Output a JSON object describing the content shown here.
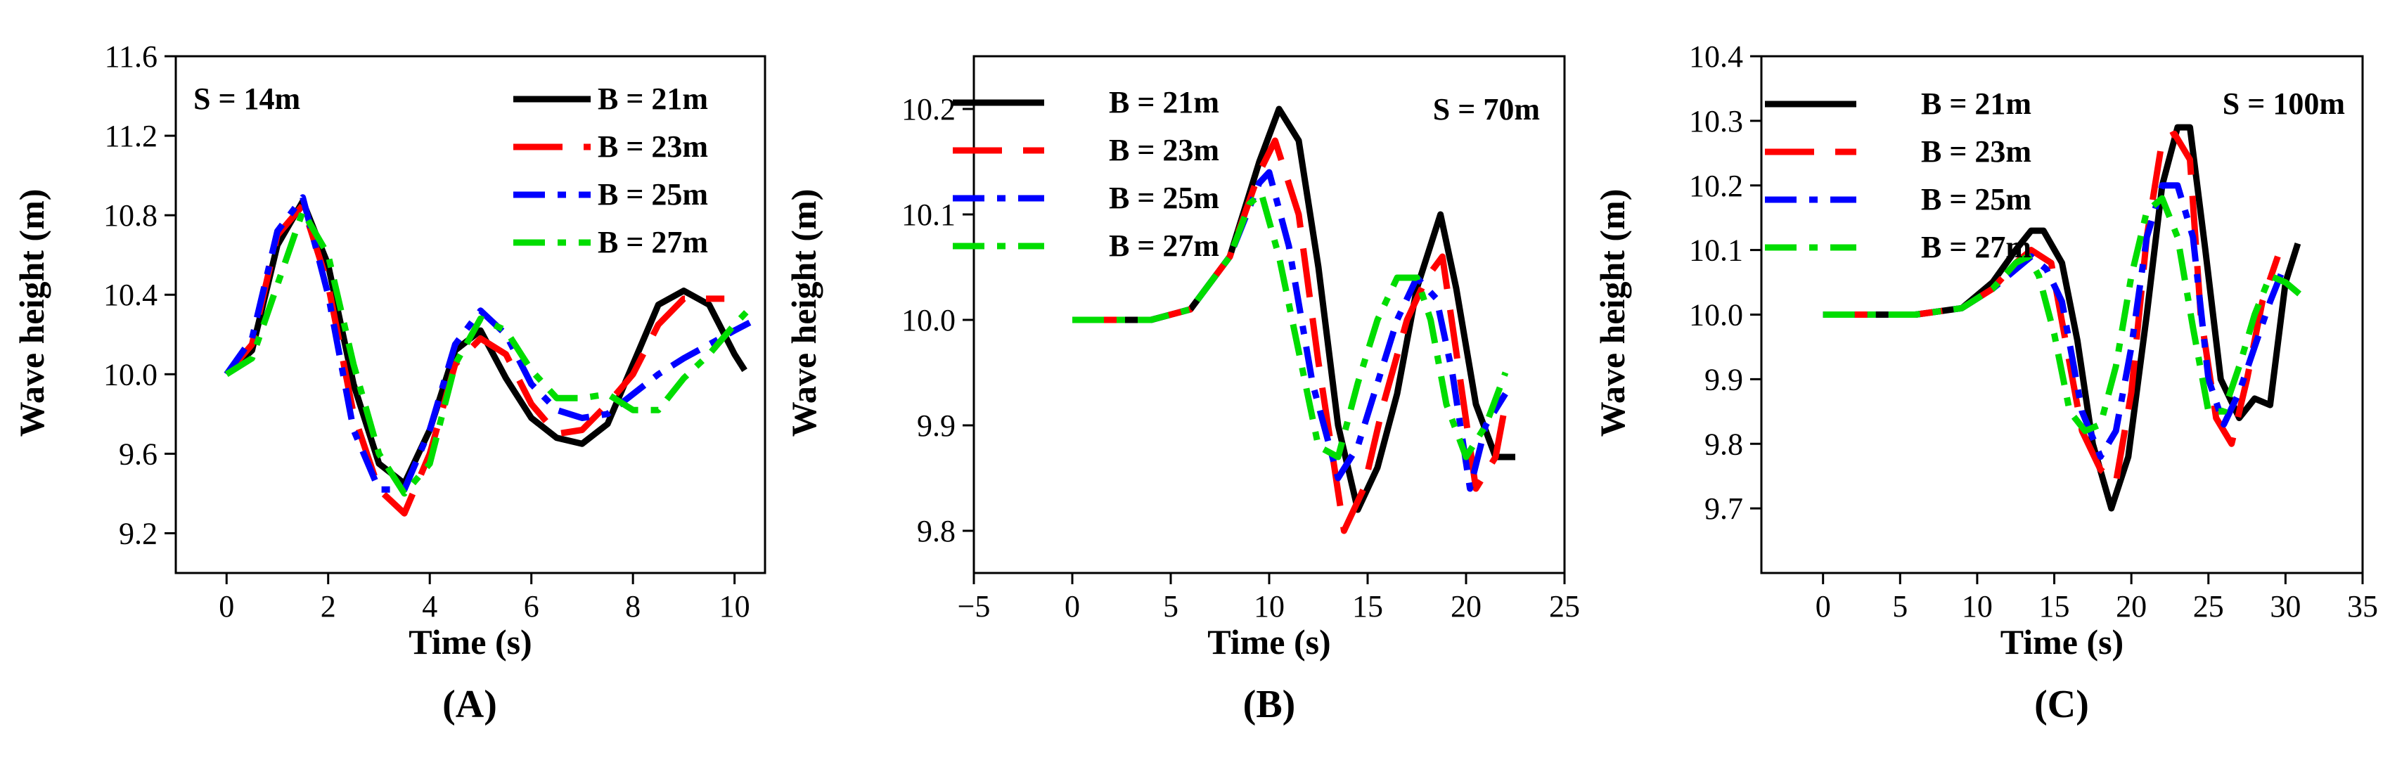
{
  "figure": {
    "legend_labels": [
      "B = 21m",
      "B = 23m",
      "B = 25m",
      "B = 27m"
    ]
  },
  "chart_data": [
    {
      "type": "line",
      "panel_label": "(A)",
      "title": "",
      "annotation": "S = 14m",
      "xlabel": "Time (s)",
      "ylabel": "Wave height (m)",
      "xlim": [
        -1.0,
        10.6
      ],
      "ylim": [
        9.0,
        11.6
      ],
      "xticks": [
        0,
        2,
        4,
        6,
        8,
        10
      ],
      "xtick_labels": [
        "0",
        "2",
        "4",
        "6",
        "8",
        "10"
      ],
      "yticks": [
        9.2,
        9.6,
        10.0,
        10.4,
        10.8,
        11.2,
        11.6
      ],
      "ytick_labels": [
        "9.2",
        "9.6",
        "10.0",
        "10.4",
        "10.8",
        "11.2",
        "11.6"
      ],
      "legend_position": "top-right",
      "series": [
        {
          "name": "B = 21m",
          "color": "#000000",
          "dash": "solid",
          "x": [
            0,
            0.5,
            1.0,
            1.5,
            2.0,
            2.5,
            3.0,
            3.5,
            4.0,
            4.5,
            5.0,
            5.5,
            6.0,
            6.5,
            7.0,
            7.5,
            8.0,
            8.5,
            9.0,
            9.5,
            10.0,
            10.2
          ],
          "y": [
            10.0,
            10.12,
            10.65,
            10.87,
            10.55,
            9.95,
            9.55,
            9.45,
            9.72,
            10.12,
            10.22,
            9.98,
            9.78,
            9.68,
            9.65,
            9.75,
            10.05,
            10.35,
            10.42,
            10.35,
            10.1,
            10.02
          ]
        },
        {
          "name": "B = 23m",
          "color": "#ff0000",
          "dash": "long-dash",
          "x": [
            0,
            0.5,
            1.0,
            1.5,
            2.0,
            2.5,
            3.0,
            3.5,
            4.0,
            4.5,
            5.0,
            5.5,
            6.0,
            6.5,
            7.0,
            7.5,
            8.0,
            8.5,
            9.0,
            9.5,
            9.8
          ],
          "y": [
            10.0,
            10.15,
            10.7,
            10.85,
            10.45,
            9.8,
            9.42,
            9.3,
            9.6,
            10.05,
            10.18,
            10.1,
            9.85,
            9.7,
            9.72,
            9.85,
            10.0,
            10.25,
            10.38,
            10.38,
            10.38
          ]
        },
        {
          "name": "B = 25m",
          "color": "#0000ff",
          "dash": "dash-dot",
          "x": [
            0,
            0.5,
            1.0,
            1.5,
            2.0,
            2.5,
            3.0,
            3.5,
            4.0,
            4.5,
            5.0,
            5.5,
            6.0,
            6.5,
            7.0,
            7.5,
            8.0,
            8.5,
            9.0,
            9.5,
            10.0,
            10.3
          ],
          "y": [
            10.0,
            10.18,
            10.72,
            10.89,
            10.4,
            9.72,
            9.42,
            9.42,
            9.72,
            10.15,
            10.32,
            10.2,
            9.95,
            9.82,
            9.78,
            9.8,
            9.9,
            10.0,
            10.08,
            10.15,
            10.22,
            10.26
          ]
        },
        {
          "name": "B = 27m",
          "color": "#00dd00",
          "dash": "dash-dot",
          "x": [
            0,
            0.5,
            1.0,
            1.5,
            2.0,
            2.5,
            3.0,
            3.5,
            4.0,
            4.5,
            5.0,
            5.5,
            6.0,
            6.5,
            7.0,
            7.5,
            8.0,
            8.5,
            9.0,
            9.5,
            10.0,
            10.3
          ],
          "y": [
            10.0,
            10.08,
            10.45,
            10.82,
            10.6,
            10.05,
            9.6,
            9.4,
            9.55,
            10.05,
            10.28,
            10.22,
            10.02,
            9.88,
            9.88,
            9.9,
            9.82,
            9.82,
            9.98,
            10.1,
            10.25,
            10.33
          ]
        }
      ]
    },
    {
      "type": "line",
      "panel_label": "(B)",
      "title": "",
      "annotation": "S = 70m",
      "xlabel": "Time (s)",
      "ylabel": "Wave height (m)",
      "xlim": [
        -5,
        25
      ],
      "ylim": [
        9.76,
        10.25
      ],
      "xticks": [
        -5,
        0,
        5,
        10,
        15,
        20,
        25
      ],
      "xtick_labels": [
        "−5",
        "0",
        "5",
        "10",
        "15",
        "20",
        "25"
      ],
      "yticks": [
        9.8,
        9.9,
        10.0,
        10.1,
        10.2
      ],
      "ytick_labels": [
        "9.8",
        "9.9",
        "10.0",
        "10.1",
        "10.2"
      ],
      "legend_position": "top-left",
      "series": [
        {
          "name": "B = 21m",
          "color": "#000000",
          "dash": "solid",
          "x": [
            0,
            4,
            6,
            8,
            9.5,
            10.5,
            11.5,
            12.5,
            13.5,
            14.5,
            15.5,
            16.5,
            17.5,
            18.7,
            19.5,
            20.5,
            21.5,
            22.5
          ],
          "y": [
            10.0,
            10.0,
            10.01,
            10.06,
            10.15,
            10.2,
            10.17,
            10.05,
            9.9,
            9.82,
            9.86,
            9.93,
            10.03,
            10.1,
            10.03,
            9.92,
            9.87,
            9.87
          ]
        },
        {
          "name": "B = 23m",
          "color": "#ff0000",
          "dash": "long-dash",
          "x": [
            0,
            4,
            6,
            8,
            9.5,
            10.3,
            11.5,
            12.5,
            13.8,
            14.8,
            15.8,
            17.0,
            18.0,
            18.8,
            19.5,
            20.5,
            21.5,
            22.0
          ],
          "y": [
            10.0,
            10.0,
            10.01,
            10.06,
            10.14,
            10.17,
            10.1,
            9.96,
            9.8,
            9.84,
            9.92,
            10.0,
            10.04,
            10.06,
            9.97,
            9.84,
            9.87,
            9.92
          ]
        },
        {
          "name": "B = 25m",
          "color": "#0000ff",
          "dash": "dash-dot",
          "x": [
            0,
            4,
            6,
            8,
            9.5,
            10.0,
            11.0,
            12.2,
            13.5,
            14.5,
            15.5,
            16.5,
            17.5,
            18.5,
            19.3,
            20.2,
            21.0,
            22.0
          ],
          "y": [
            10.0,
            10.0,
            10.01,
            10.06,
            10.13,
            10.14,
            10.07,
            9.94,
            9.85,
            9.88,
            9.94,
            10.0,
            10.04,
            10.02,
            9.95,
            9.84,
            9.9,
            9.93
          ]
        },
        {
          "name": "B = 27m",
          "color": "#00dd00",
          "dash": "dash-dot",
          "x": [
            0,
            4,
            6,
            8,
            9.0,
            9.6,
            10.5,
            11.5,
            12.5,
            13.5,
            14.5,
            15.5,
            16.5,
            17.5,
            18.2,
            19.0,
            20.0,
            21.0,
            22.0
          ],
          "y": [
            10.0,
            10.0,
            10.01,
            10.06,
            10.11,
            10.12,
            10.06,
            9.97,
            9.88,
            9.87,
            9.94,
            10.0,
            10.04,
            10.04,
            10.0,
            9.92,
            9.87,
            9.9,
            9.95
          ]
        }
      ]
    },
    {
      "type": "line",
      "panel_label": "(C)",
      "title": "",
      "annotation": "S = 100m",
      "xlabel": "Time (s)",
      "ylabel": "Wave height (m)",
      "xlim": [
        -4,
        35
      ],
      "ylim": [
        9.6,
        10.4
      ],
      "xticks": [
        0,
        5,
        10,
        15,
        20,
        25,
        30,
        35
      ],
      "xtick_labels": [
        "0",
        "5",
        "10",
        "15",
        "20",
        "25",
        "30",
        "35"
      ],
      "yticks": [
        9.7,
        9.8,
        9.9,
        10.0,
        10.1,
        10.2,
        10.3,
        10.4
      ],
      "ytick_labels": [
        "9.7",
        "9.8",
        "9.9",
        "10.0",
        "10.1",
        "10.2",
        "10.3",
        "10.4"
      ],
      "legend_position": "top-left",
      "series": [
        {
          "name": "B = 21m",
          "color": "#000000",
          "dash": "solid",
          "x": [
            0,
            6,
            9,
            11,
            12.5,
            13.5,
            14.3,
            15.5,
            16.5,
            17.5,
            18.7,
            19.8,
            21.0,
            22.0,
            23.0,
            23.8,
            24.8,
            25.8,
            27.0,
            28.0,
            29.0,
            30.0,
            30.8
          ],
          "y": [
            10.0,
            10.0,
            10.01,
            10.05,
            10.1,
            10.13,
            10.13,
            10.08,
            9.96,
            9.8,
            9.7,
            9.78,
            10.0,
            10.2,
            10.29,
            10.29,
            10.1,
            9.9,
            9.84,
            9.87,
            9.86,
            10.05,
            10.11
          ]
        },
        {
          "name": "B = 23m",
          "color": "#ff0000",
          "dash": "long-dash",
          "x": [
            0,
            6,
            9,
            11,
            12.5,
            13.5,
            14.8,
            15.8,
            16.8,
            18.0,
            19.0,
            20.0,
            21.0,
            22.0,
            22.8,
            23.8,
            24.5,
            25.5,
            26.5,
            27.5,
            28.5,
            29.5
          ],
          "y": [
            10.0,
            10.0,
            10.01,
            10.04,
            10.08,
            10.1,
            10.08,
            9.95,
            9.82,
            9.76,
            9.74,
            9.88,
            10.12,
            10.27,
            10.28,
            10.24,
            10.0,
            9.84,
            9.8,
            9.9,
            10.02,
            10.09
          ]
        },
        {
          "name": "B = 25m",
          "color": "#0000ff",
          "dash": "dash-dot",
          "x": [
            0,
            6,
            9,
            11,
            12.5,
            13.5,
            14.5,
            15.5,
            16.8,
            18.0,
            19.0,
            20.0,
            21.0,
            22.0,
            23.0,
            24.0,
            25.0,
            26.0,
            27.0,
            28.0,
            29.0,
            30.0
          ],
          "y": [
            10.0,
            10.0,
            10.01,
            10.04,
            10.07,
            10.09,
            10.07,
            10.02,
            9.85,
            9.78,
            9.82,
            9.95,
            10.12,
            10.2,
            10.2,
            10.12,
            9.9,
            9.83,
            9.88,
            9.95,
            10.02,
            10.08
          ]
        },
        {
          "name": "B = 27m",
          "color": "#00dd00",
          "dash": "dash-dot",
          "x": [
            0,
            6,
            9,
            11,
            12.5,
            13.3,
            14.0,
            15.0,
            16.0,
            17.0,
            18.0,
            19.0,
            20.0,
            21.0,
            22.0,
            23.0,
            24.0,
            25.0,
            26.0,
            27.0,
            28.0,
            29.0,
            30.0,
            31.0
          ],
          "y": [
            10.0,
            10.0,
            10.01,
            10.04,
            10.08,
            10.09,
            10.06,
            9.97,
            9.85,
            9.82,
            9.83,
            9.92,
            10.06,
            10.16,
            10.18,
            10.12,
            9.98,
            9.85,
            9.85,
            9.92,
            10.0,
            10.06,
            10.05,
            10.03
          ]
        }
      ]
    }
  ]
}
